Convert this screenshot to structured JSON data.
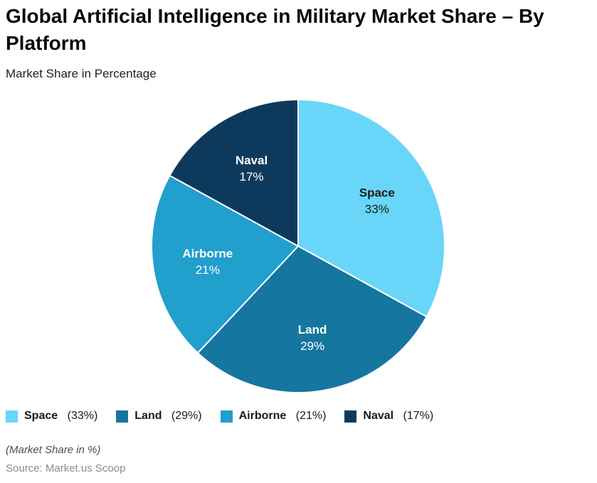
{
  "header": {
    "title": "Global Artificial Intelligence in Military Market Share – By Platform",
    "subtitle": "Market Share in Percentage"
  },
  "chart_data": {
    "type": "pie",
    "title": "Global Artificial Intelligence in Military Market Share – By Platform",
    "subtitle": "Market Share in Percentage",
    "unit": "%",
    "start_angle_deg": 0,
    "direction": "clockwise",
    "legend_position": "bottom",
    "slice_border_color": "#ffffff",
    "slices": [
      {
        "label": "Space",
        "value": 33,
        "color": "#69d5f8",
        "label_color": "#1a1a1a",
        "legend_label": "Space",
        "legend_value": "(33%)"
      },
      {
        "label": "Land",
        "value": 29,
        "color": "#15769f",
        "label_color": "#ffffff",
        "legend_label": "Land",
        "legend_value": "(29%)"
      },
      {
        "label": "Airborne",
        "value": 21,
        "color": "#219fcd",
        "label_color": "#ffffff",
        "legend_label": "Airborne",
        "legend_value": "(21%)"
      },
      {
        "label": "Naval",
        "value": 17,
        "color": "#0d3a5c",
        "label_color": "#ffffff",
        "legend_label": "Naval",
        "legend_value": "(17%)"
      }
    ]
  },
  "footer": {
    "note": "(Market Share in %)",
    "source": "Source: Market.us Scoop"
  }
}
